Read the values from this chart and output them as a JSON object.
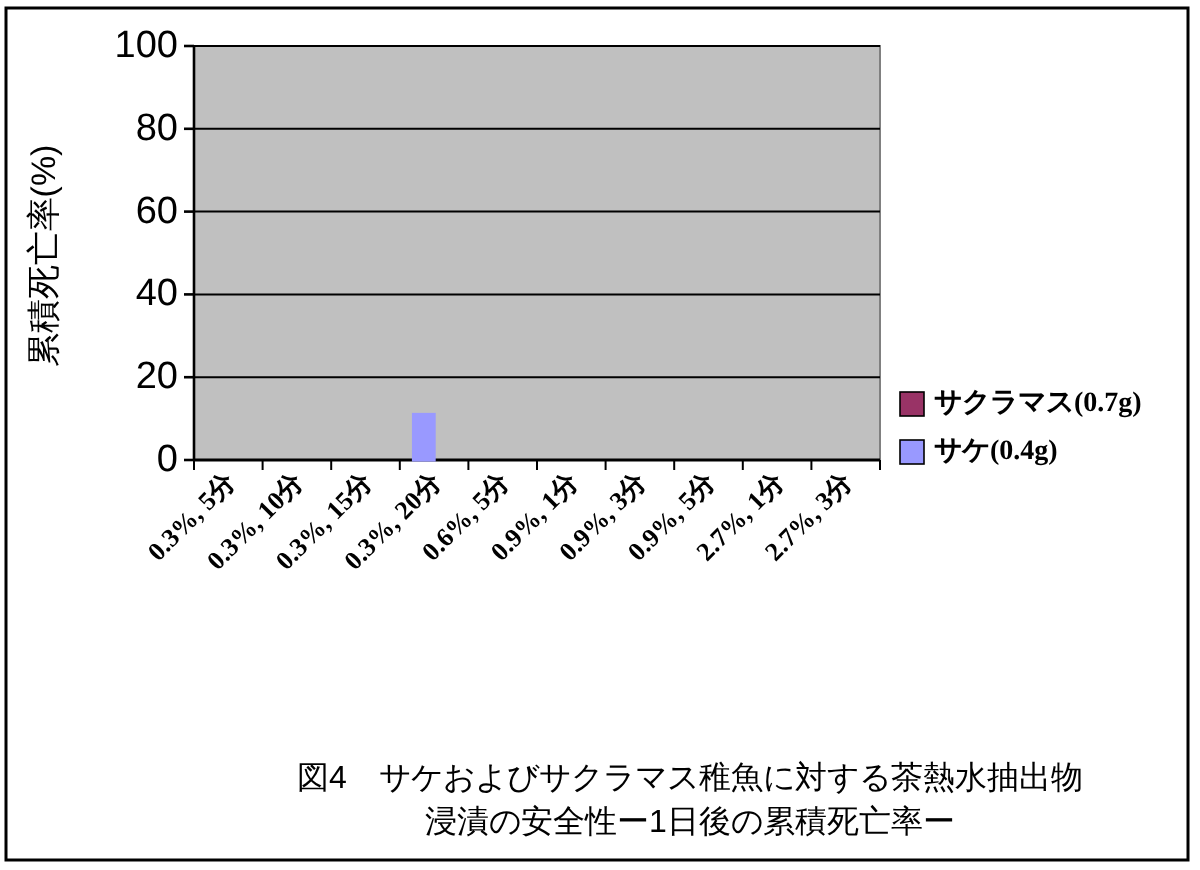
{
  "chart_data": {
    "type": "bar",
    "title": "図4　サケおよびサクラマス稚魚に対する茶熱水抽出物浸漬の安全性ー1日後の累積死亡率ー",
    "ylabel": "累積死亡率(%)",
    "categories": [
      "0.3%, 5分",
      "0.3%, 10分",
      "0.3%, 15分",
      "0.3%, 20分",
      "0.6%, 5分",
      "0.9%, 1分",
      "0.9%, 3分",
      "0.9%, 5分",
      "2.7%, 1分",
      "2.7%, 3分"
    ],
    "series": [
      {
        "name": "サケ(0.4g)",
        "color": "#9999ff",
        "values": [
          0,
          0,
          0,
          11,
          0,
          0,
          0,
          0,
          0,
          0
        ]
      },
      {
        "name": "サクラマス(0.7g)",
        "color": "#993366",
        "values": [
          0,
          0,
          0,
          0,
          0,
          0,
          0,
          0,
          0,
          0
        ]
      }
    ],
    "ylim": [
      0,
      100
    ],
    "yticks": [
      0,
      20,
      40,
      60,
      80,
      100
    ],
    "grid": "y",
    "legend": "bottom right"
  }
}
